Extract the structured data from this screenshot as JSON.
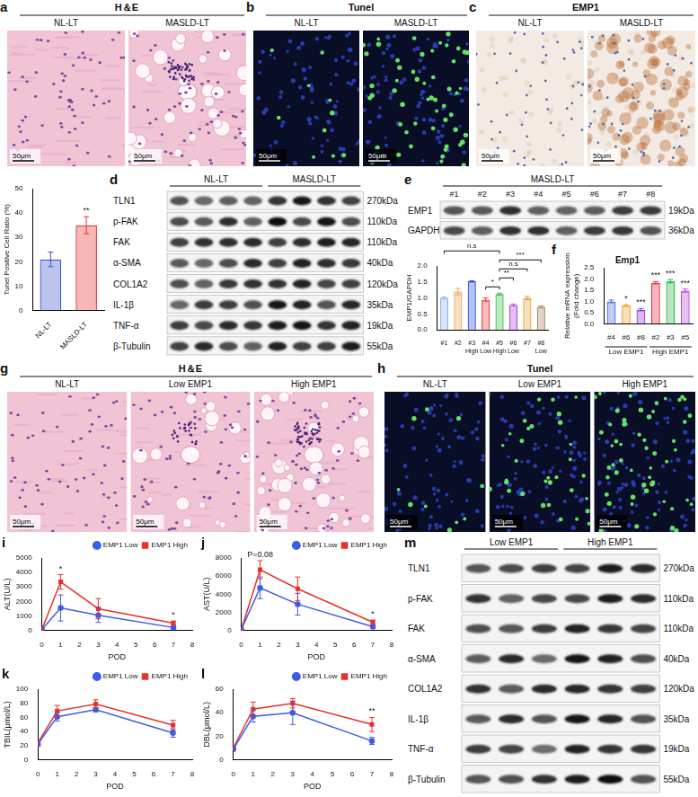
{
  "image_panels": [
    {
      "letter": "a",
      "title": "H＆E",
      "images": [
        "NL-LT",
        "MASLD-LT"
      ],
      "scale_bar": "50μm"
    },
    {
      "letter": "b",
      "title": "Tunel",
      "images": [
        "NL-LT",
        "MASLD-LT"
      ],
      "scale_bar": "50μm"
    },
    {
      "letter": "c",
      "title": "EMP1",
      "images": [
        "NL-LT",
        "MASLD-LT"
      ],
      "scale_bar": "50μm"
    },
    {
      "letter": "g",
      "title": "H＆E",
      "images": [
        "NL-LT",
        "Low EMP1",
        "High EMP1"
      ],
      "scale_bar": "50μm"
    },
    {
      "letter": "h",
      "title": "Tunel",
      "images": [
        "NL-LT",
        "Low EMP1",
        "High EMP1"
      ],
      "scale_bar": "50μm"
    }
  ],
  "blots": [
    {
      "letter": "d",
      "groups": [
        {
          "label": "NL-LT",
          "lanes": 4
        },
        {
          "label": "MASLD-LT",
          "lanes": 4
        }
      ],
      "rows": [
        {
          "name": "TLN1",
          "size": "270kDa"
        },
        {
          "name": "p-FAK",
          "size": "110kDa"
        },
        {
          "name": "FAK",
          "size": "110kDa"
        },
        {
          "name": "α-SMA",
          "size": "40kDa"
        },
        {
          "name": "COL1A2",
          "size": "120kDa"
        },
        {
          "name": "IL-1β",
          "size": "35kDa"
        },
        {
          "name": "TNF-α",
          "size": "19kDa"
        },
        {
          "name": "β-Tubulin",
          "size": "55kDa"
        }
      ]
    },
    {
      "letter": "e",
      "header": "MASLD-LT",
      "lanes": [
        "#1",
        "#2",
        "#3",
        "#4",
        "#5",
        "#6",
        "#7",
        "#8"
      ],
      "rows": [
        {
          "name": "EMP1",
          "size": "19kDa"
        },
        {
          "name": "GAPDH",
          "size": "36kDa"
        }
      ]
    },
    {
      "letter": "m",
      "groups": [
        {
          "label": "Low EMP1",
          "lanes": 3
        },
        {
          "label": "High EMP1",
          "lanes": 3
        }
      ],
      "rows": [
        {
          "name": "TLN1",
          "size": "270kDa"
        },
        {
          "name": "p-FAK",
          "size": "110kDa"
        },
        {
          "name": "FAK",
          "size": "110kDa"
        },
        {
          "name": "α-SMA",
          "size": "40kDa"
        },
        {
          "name": "COL1A2",
          "size": "120kDa"
        },
        {
          "name": "IL-1β",
          "size": "35kDa"
        },
        {
          "name": "TNF-α",
          "size": "19kDa"
        },
        {
          "name": "β-Tubulin",
          "size": "55kDa"
        }
      ]
    }
  ],
  "chart_data": [
    {
      "type": "bar",
      "y_label": "Tunel Positive Cell Ratio (%)",
      "categories": [
        "NL-LT",
        "MASLD-LT"
      ],
      "values": [
        21,
        35
      ],
      "errors": [
        3,
        3.5
      ],
      "colors": [
        "#3b55d0",
        "#e5312f"
      ],
      "ylim": [
        0,
        50
      ],
      "yticks": [
        0,
        10,
        20,
        30,
        40,
        50
      ],
      "grid": false,
      "annotations": [
        {
          "category": "MASLD-LT",
          "text": "**"
        }
      ]
    },
    {
      "type": "bar",
      "y_label": "EMP1/GAPDH",
      "categories": [
        "#1",
        "#2",
        "#3",
        "#4",
        "#5",
        "#6",
        "#7",
        "#8"
      ],
      "group_labels": [
        null,
        null,
        "High",
        "Low",
        "High",
        "Low",
        null,
        "Low"
      ],
      "values": [
        1.0,
        1.2,
        1.52,
        0.95,
        1.12,
        0.78,
        1.0,
        0.72
      ],
      "errors": [
        0.03,
        0.1,
        0.02,
        0.05,
        0.03,
        0.03,
        0.05,
        0.03
      ],
      "colors": [
        "#8fb3ea",
        "#f2a65a",
        "#2f4fd6",
        "#e8413c",
        "#3cc24a",
        "#b04ad6",
        "#e2a340",
        "#a5845c"
      ],
      "ylim": [
        0,
        2.0
      ],
      "yticks": [
        {
          "value": 0,
          "label": "0.0"
        },
        {
          "value": 0.5,
          "label": "0.5"
        },
        {
          "value": 1.0,
          "label": "1.0"
        },
        {
          "value": 1.5,
          "label": "1.5"
        },
        {
          "value": 2.0,
          "label": "2.0"
        }
      ],
      "grid": false,
      "comparisons": [
        {
          "from": "#4",
          "to": "#5",
          "text": "*"
        },
        {
          "from": "#5",
          "to": "#6",
          "text": "**"
        },
        {
          "from": "#5",
          "to": "#7",
          "text": "n.s"
        },
        {
          "from": "#5",
          "to": "#8",
          "text": "***"
        },
        {
          "from": "#1",
          "to": "#5",
          "text": "n.s"
        }
      ]
    },
    {
      "letter": "f",
      "type": "bar",
      "title": "Emp1",
      "y_label": [
        "Relative mRNA expression",
        "(Fold change)"
      ],
      "categories": [
        "#4",
        "#6",
        "#8",
        "#2",
        "#3",
        "#5"
      ],
      "values": [
        1.0,
        0.82,
        0.63,
        1.83,
        1.9,
        1.48
      ],
      "errors": [
        0.06,
        0.04,
        0.05,
        0.05,
        0.08,
        0.07
      ],
      "colors": [
        "#4a6fe0",
        "#f2a02c",
        "#8a3fd6",
        "#e8304a",
        "#33b84a",
        "#b54ad6"
      ],
      "ylim": [
        0,
        2.5
      ],
      "yticks": [
        {
          "value": 0,
          "label": "0.0"
        },
        {
          "value": 0.5,
          "label": "0.5"
        },
        {
          "value": 1.0,
          "label": "1.0"
        },
        {
          "value": 1.5,
          "label": "1.5"
        },
        {
          "value": 2.0,
          "label": "2.0"
        },
        {
          "value": 2.5,
          "label": "2.5"
        }
      ],
      "grid": false,
      "annotations": [
        {
          "category": "#6",
          "text": "*"
        },
        {
          "category": "#8",
          "text": "***"
        },
        {
          "category": "#2",
          "text": "***"
        },
        {
          "category": "#3",
          "text": "***"
        },
        {
          "category": "#5",
          "text": "***"
        }
      ],
      "groups": [
        {
          "label": "Low EMP1",
          "categories": [
            "#4",
            "#6",
            "#8"
          ]
        },
        {
          "label": "High EMP1",
          "categories": [
            "#2",
            "#3",
            "#5"
          ]
        }
      ]
    },
    {
      "letter": "i",
      "type": "line",
      "x_label": "POD",
      "y_label": "ALT(U/L)",
      "x": [
        0,
        1,
        3,
        7
      ],
      "xlim": [
        0,
        8
      ],
      "xticks": [
        0,
        1,
        2,
        3,
        4,
        5,
        6,
        7,
        8
      ],
      "ylim": [
        0,
        5000
      ],
      "yticks": [
        0,
        1000,
        2000,
        3000,
        4000,
        5000
      ],
      "grid": false,
      "legend": "top",
      "series": [
        {
          "name": "EMP1 Low",
          "color": "#3d5ce8",
          "marker": "circle",
          "values": [
            50,
            1550,
            1050,
            200
          ],
          "errors": [
            20,
            900,
            500,
            100
          ]
        },
        {
          "name": "EMP1 High",
          "color": "#e8302c",
          "marker": "square",
          "values": [
            60,
            3350,
            1500,
            500
          ],
          "errors": [
            20,
            500,
            700,
            150
          ]
        }
      ],
      "annotations": [
        {
          "x": 1,
          "text": "*"
        },
        {
          "x": 7,
          "text": "*"
        }
      ]
    },
    {
      "letter": "j",
      "type": "line",
      "x_label": "POD",
      "y_label": "AST(U/L)",
      "x": [
        0,
        1,
        3,
        7
      ],
      "xlim": [
        0,
        8
      ],
      "xticks": [
        0,
        1,
        2,
        3,
        4,
        5,
        6,
        7,
        8
      ],
      "ylim": [
        0,
        8000
      ],
      "yticks": [
        0,
        2000,
        4000,
        6000,
        8000
      ],
      "grid": false,
      "legend": "top",
      "series": [
        {
          "name": "EMP1 Low",
          "color": "#3d5ce8",
          "marker": "circle",
          "values": [
            80,
            4700,
            2900,
            400
          ],
          "errors": [
            30,
            1200,
            1200,
            150
          ]
        },
        {
          "name": "EMP1 High",
          "color": "#e8302c",
          "marker": "square",
          "values": [
            90,
            6700,
            4600,
            900
          ],
          "errors": [
            30,
            1000,
            1300,
            250
          ]
        }
      ],
      "annotations": [
        {
          "x": 1,
          "text": "P=0.08"
        },
        {
          "x": 7,
          "text": "*"
        }
      ]
    },
    {
      "letter": "k",
      "type": "line",
      "x_label": "POD",
      "y_label": "TBIL(μmol/L)",
      "x": [
        0,
        1,
        3,
        7
      ],
      "xlim": [
        0,
        8
      ],
      "xticks": [
        0,
        1,
        2,
        3,
        4,
        5,
        6,
        7,
        8
      ],
      "ylim": [
        0,
        100
      ],
      "yticks": [
        0,
        20,
        40,
        60,
        80,
        100
      ],
      "grid": false,
      "legend": "top",
      "series": [
        {
          "name": "EMP1 Low",
          "color": "#3d5ce8",
          "marker": "circle",
          "values": [
            22,
            61,
            71,
            38
          ],
          "errors": [
            3,
            6,
            3,
            6
          ]
        },
        {
          "name": "EMP1 High",
          "color": "#e8302c",
          "marker": "square",
          "values": [
            24,
            69,
            79,
            49
          ],
          "errors": [
            3,
            8,
            6,
            7
          ]
        }
      ]
    },
    {
      "letter": "l",
      "type": "line",
      "x_label": "POD",
      "y_label": "DBL(μmol/L)",
      "x": [
        0,
        1,
        3,
        7
      ],
      "xlim": [
        0,
        8
      ],
      "xticks": [
        0,
        1,
        2,
        3,
        4,
        5,
        6,
        7,
        8
      ],
      "ylim": [
        0,
        60
      ],
      "yticks": [
        0,
        20,
        40,
        60
      ],
      "grid": false,
      "legend": "top",
      "series": [
        {
          "name": "EMP1 Low",
          "color": "#3d5ce8",
          "marker": "circle",
          "values": [
            9,
            37,
            40,
            16
          ],
          "errors": [
            1,
            5,
            10,
            3
          ]
        },
        {
          "name": "EMP1 High",
          "color": "#e8302c",
          "marker": "square",
          "values": [
            10,
            43,
            48,
            30
          ],
          "errors": [
            1,
            6,
            4,
            6
          ]
        }
      ],
      "annotations": [
        {
          "x": 7,
          "text": "**"
        }
      ]
    }
  ]
}
